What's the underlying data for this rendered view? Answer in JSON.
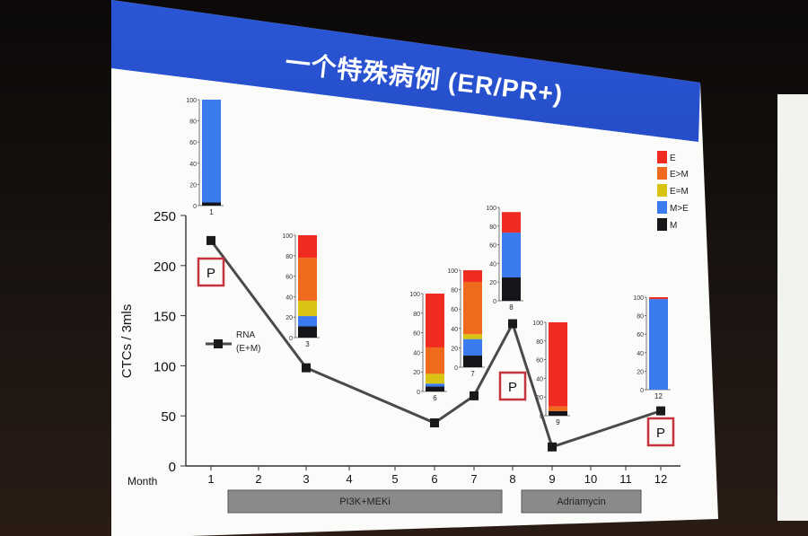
{
  "slide": {
    "title": "一个特殊病例 (ER/PR+)"
  },
  "chart_data": [
    {
      "type": "line",
      "xlabel": "Month",
      "ylabel": "CTCs / 3mls",
      "ylim": [
        0,
        250
      ],
      "yticks": [
        0,
        50,
        100,
        150,
        200,
        250
      ],
      "xticks": [
        1,
        2,
        3,
        4,
        5,
        6,
        7,
        8,
        9,
        10,
        11,
        12
      ],
      "series": [
        {
          "name": "RNA (E+M)",
          "x": [
            1,
            3,
            6,
            7,
            8,
            9,
            12
          ],
          "y": [
            225,
            98,
            43,
            70,
            142,
            19,
            55
          ]
        }
      ],
      "legend": {
        "line1": "RNA",
        "line2": "(E+M)"
      },
      "annotations": [
        {
          "text": "P",
          "month": 1
        },
        {
          "text": "P",
          "month": 8
        },
        {
          "text": "P",
          "month": 12
        }
      ],
      "treatments": [
        {
          "label": "PI3K+MEKi",
          "from": 1,
          "to": 8
        },
        {
          "label": "Adriamycin",
          "from": 9,
          "to": 12
        }
      ]
    },
    {
      "type": "bar",
      "stacked": true,
      "ylim": [
        0,
        100
      ],
      "yticks": [
        0,
        20,
        40,
        60,
        80,
        100
      ],
      "legend_position": "top-right",
      "legend": [
        "E",
        "E>M",
        "E=M",
        "M>E",
        "M"
      ],
      "colors": [
        "#ef2b22",
        "#ef6a1c",
        "#d9c414",
        "#3a7bf0",
        "#15151a"
      ],
      "bars": [
        {
          "label": "1",
          "values": [
            0,
            0,
            0,
            97,
            3
          ]
        },
        {
          "label": "3",
          "values": [
            22,
            42,
            15,
            10,
            11
          ]
        },
        {
          "label": "6",
          "values": [
            55,
            27,
            10,
            3,
            5
          ]
        },
        {
          "label": "7",
          "values": [
            12,
            54,
            5,
            17,
            12
          ]
        },
        {
          "label": "8",
          "values": [
            22,
            0,
            0,
            48,
            25
          ]
        },
        {
          "label": "9",
          "values": [
            90,
            5,
            0,
            0,
            5
          ]
        },
        {
          "label": "12",
          "values": [
            2,
            0,
            0,
            98,
            0
          ]
        }
      ]
    }
  ]
}
